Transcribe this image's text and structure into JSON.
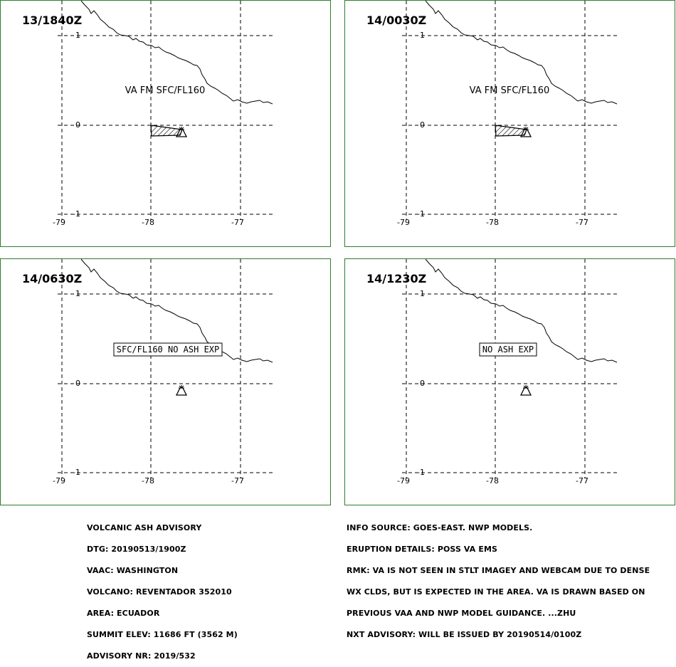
{
  "panels": [
    {
      "time": "13/1840Z",
      "ash": "polygon",
      "label": "VA FM SFC/FL160",
      "label_style": "plain"
    },
    {
      "time": "14/0030Z",
      "ash": "polygon",
      "label": "VA FM SFC/FL160",
      "label_style": "plain"
    },
    {
      "time": "14/0630Z",
      "ash": "none",
      "label": "SFC/FL160 NO ASH EXP",
      "label_style": "boxed"
    },
    {
      "time": "14/1230Z",
      "ash": "none",
      "label": "NO ASH EXP",
      "label_style": "boxed"
    }
  ],
  "axes": {
    "lon_labels": [
      "-79",
      "-78",
      "-77"
    ],
    "lat_labels": [
      "1",
      "0",
      "-1"
    ]
  },
  "volcano": {
    "name": "REVENTADOR",
    "symbol": "volcano-icon"
  },
  "colors": {
    "panel_border": "#2e7d2e",
    "ink": "#000000"
  },
  "footer_left": [
    "VOLCANIC ASH ADVISORY",
    "DTG: 20190513/1900Z",
    "VAAC: WASHINGTON",
    "VOLCANO: REVENTADOR 352010",
    "AREA: ECUADOR",
    "SUMMIT ELEV: 11686 FT (3562 M)",
    "ADVISORY NR: 2019/532"
  ],
  "footer_right": [
    "INFO SOURCE: GOES-EAST. NWP MODELS.",
    "ERUPTION DETAILS: POSS VA EMS",
    "RMK: VA IS NOT SEEN IN STLT IMAGEY AND WEBCAM DUE TO DENSE",
    "WX CLDS, BUT IS EXPECTED IN THE AREA. VA IS DRAWN BASED ON",
    "PREVIOUS VAA AND NWP MODEL GUIDANCE. ...ZHU",
    "NXT ADVISORY: WILL BE ISSUED BY 20190514/0100Z"
  ]
}
